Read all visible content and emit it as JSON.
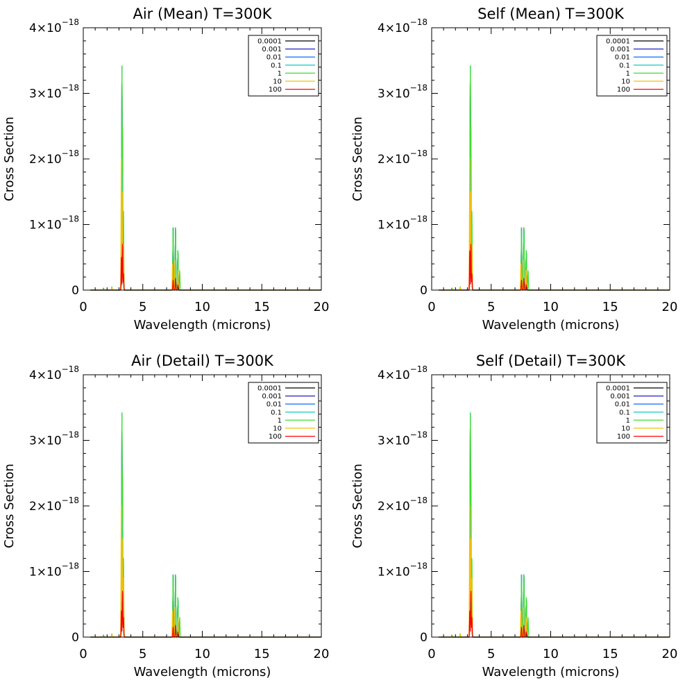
{
  "chart_data": [
    {
      "type": "line",
      "title": "Air (Mean) T=300K",
      "xlabel": "Wavelength (microns)",
      "ylabel": "Cross Section",
      "xlim": [
        0,
        20
      ],
      "ylim": [
        0,
        4e-18
      ],
      "xticks": [
        "0",
        "5",
        "10",
        "15",
        "20"
      ],
      "yticks": [
        {
          "mant": "0",
          "exp": ""
        },
        {
          "mant": "1×10",
          "exp": "−18"
        },
        {
          "mant": "2×10",
          "exp": "−18"
        },
        {
          "mant": "3×10",
          "exp": "−18"
        },
        {
          "mant": "4×10",
          "exp": "−18"
        }
      ],
      "legend": [
        "0.0001",
        "0.001",
        "0.01",
        "0.1",
        "1",
        "10",
        "100"
      ],
      "legend_position": "top-right",
      "series": [
        {
          "name": "0.0001",
          "color": "#000000",
          "peaks": [
            [
              1.7,
              0.03
            ],
            [
              2.4,
              0.03
            ],
            [
              3.25,
              3.4
            ],
            [
              3.35,
              0.9
            ],
            [
              7.55,
              0.95
            ],
            [
              7.75,
              0.95
            ],
            [
              7.95,
              0.6
            ]
          ]
        },
        {
          "name": "0.001",
          "color": "#2020c0",
          "peaks": [
            [
              3.25,
              3.4
            ],
            [
              3.35,
              0.9
            ],
            [
              7.55,
              0.95
            ],
            [
              7.75,
              0.95
            ],
            [
              7.95,
              0.6
            ]
          ]
        },
        {
          "name": "0.01",
          "color": "#1e78ff",
          "peaks": [
            [
              3.25,
              3.4
            ],
            [
              3.35,
              0.9
            ],
            [
              7.55,
              0.95
            ],
            [
              7.75,
              0.95
            ],
            [
              7.95,
              0.6
            ]
          ]
        },
        {
          "name": "0.1",
          "color": "#20d0c0",
          "peaks": [
            [
              3.25,
              3.42
            ],
            [
              3.35,
              0.9
            ],
            [
              7.55,
              0.95
            ],
            [
              7.75,
              0.95
            ],
            [
              7.95,
              0.6
            ]
          ]
        },
        {
          "name": "1",
          "color": "#40dd30",
          "peaks": [
            [
              1.7,
              0.03
            ],
            [
              2.4,
              0.05
            ],
            [
              3.25,
              3.42
            ],
            [
              3.3,
              2.5
            ],
            [
              3.38,
              1.2
            ],
            [
              7.55,
              0.95
            ],
            [
              7.75,
              0.95
            ],
            [
              7.95,
              0.6
            ],
            [
              8.1,
              0.3
            ]
          ]
        },
        {
          "name": "10",
          "color": "#f0c000",
          "peaks": [
            [
              2.4,
              0.04
            ],
            [
              3.2,
              2.0
            ],
            [
              3.28,
              1.5
            ],
            [
              3.38,
              0.7
            ],
            [
              7.5,
              0.4
            ],
            [
              7.7,
              0.45
            ],
            [
              7.95,
              0.3
            ]
          ]
        },
        {
          "name": "100",
          "color": "#ff0000",
          "peaks": [
            [
              3.2,
              0.5
            ],
            [
              3.3,
              0.7
            ],
            [
              3.38,
              0.25
            ],
            [
              7.55,
              0.15
            ],
            [
              7.75,
              0.18
            ],
            [
              7.95,
              0.08
            ]
          ]
        }
      ]
    },
    {
      "type": "line",
      "title": "Self (Mean) T=300K",
      "xlabel": "Wavelength (microns)",
      "ylabel": "Cross Section",
      "xlim": [
        0,
        20
      ],
      "ylim": [
        0,
        4e-18
      ],
      "xticks": [
        "0",
        "5",
        "10",
        "15",
        "20"
      ],
      "yticks": [
        {
          "mant": "0",
          "exp": ""
        },
        {
          "mant": "1×10",
          "exp": "−18"
        },
        {
          "mant": "2×10",
          "exp": "−18"
        },
        {
          "mant": "3×10",
          "exp": "−18"
        },
        {
          "mant": "4×10",
          "exp": "−18"
        }
      ],
      "legend": [
        "0.0001",
        "0.001",
        "0.01",
        "0.1",
        "1",
        "10",
        "100"
      ],
      "legend_position": "top-right",
      "series": [
        {
          "name": "0.0001",
          "color": "#000000",
          "peaks": [
            [
              1.7,
              0.03
            ],
            [
              2.4,
              0.03
            ],
            [
              3.25,
              3.4
            ],
            [
              3.35,
              0.9
            ],
            [
              7.55,
              0.95
            ],
            [
              7.75,
              0.95
            ],
            [
              7.95,
              0.6
            ]
          ]
        },
        {
          "name": "0.001",
          "color": "#2020c0",
          "peaks": [
            [
              3.25,
              3.4
            ],
            [
              3.35,
              0.9
            ],
            [
              7.55,
              0.95
            ],
            [
              7.75,
              0.95
            ],
            [
              7.95,
              0.6
            ]
          ]
        },
        {
          "name": "0.01",
          "color": "#1e78ff",
          "peaks": [
            [
              3.25,
              3.4
            ],
            [
              3.35,
              0.9
            ],
            [
              7.55,
              0.95
            ],
            [
              7.75,
              0.95
            ],
            [
              7.95,
              0.6
            ]
          ]
        },
        {
          "name": "0.1",
          "color": "#20d0c0",
          "peaks": [
            [
              3.25,
              3.42
            ],
            [
              3.35,
              0.9
            ],
            [
              7.55,
              0.95
            ],
            [
              7.75,
              0.95
            ],
            [
              7.95,
              0.6
            ]
          ]
        },
        {
          "name": "1",
          "color": "#40dd30",
          "peaks": [
            [
              1.7,
              0.03
            ],
            [
              2.4,
              0.05
            ],
            [
              3.25,
              3.42
            ],
            [
              3.3,
              2.5
            ],
            [
              3.38,
              1.2
            ],
            [
              7.55,
              0.95
            ],
            [
              7.75,
              0.95
            ],
            [
              7.95,
              0.6
            ],
            [
              8.1,
              0.3
            ]
          ]
        },
        {
          "name": "10",
          "color": "#f0c000",
          "peaks": [
            [
              2.4,
              0.04
            ],
            [
              3.2,
              2.0
            ],
            [
              3.28,
              1.5
            ],
            [
              3.38,
              0.7
            ],
            [
              7.5,
              0.4
            ],
            [
              7.7,
              0.45
            ],
            [
              7.95,
              0.3
            ]
          ]
        },
        {
          "name": "100",
          "color": "#ff0000",
          "peaks": [
            [
              3.2,
              0.6
            ],
            [
              3.3,
              0.7
            ],
            [
              3.38,
              0.25
            ],
            [
              7.55,
              0.15
            ],
            [
              7.75,
              0.18
            ],
            [
              7.95,
              0.08
            ]
          ]
        }
      ]
    },
    {
      "type": "line",
      "title": "Air (Detail) T=300K",
      "xlabel": "Wavelength (microns)",
      "ylabel": "Cross Section",
      "xlim": [
        0,
        20
      ],
      "ylim": [
        0,
        4e-18
      ],
      "xticks": [
        "0",
        "5",
        "10",
        "15",
        "20"
      ],
      "yticks": [
        {
          "mant": "0",
          "exp": ""
        },
        {
          "mant": "1×10",
          "exp": "−18"
        },
        {
          "mant": "2×10",
          "exp": "−18"
        },
        {
          "mant": "3×10",
          "exp": "−18"
        },
        {
          "mant": "4×10",
          "exp": "−18"
        }
      ],
      "legend": [
        "0.0001",
        "0.001",
        "0.01",
        "0.1",
        "1",
        "10",
        "100"
      ],
      "legend_position": "top-right",
      "series": [
        {
          "name": "0.0001",
          "color": "#000000",
          "peaks": [
            [
              1.7,
              0.03
            ],
            [
              2.4,
              0.03
            ],
            [
              3.25,
              3.4
            ],
            [
              3.35,
              0.9
            ],
            [
              7.55,
              0.95
            ],
            [
              7.75,
              0.95
            ],
            [
              7.95,
              0.6
            ]
          ]
        },
        {
          "name": "0.001",
          "color": "#2020c0",
          "peaks": [
            [
              3.25,
              3.4
            ],
            [
              3.35,
              0.9
            ],
            [
              7.55,
              0.95
            ],
            [
              7.75,
              0.95
            ],
            [
              7.95,
              0.6
            ]
          ]
        },
        {
          "name": "0.01",
          "color": "#1e78ff",
          "peaks": [
            [
              3.25,
              3.4
            ],
            [
              3.35,
              0.9
            ],
            [
              7.55,
              0.95
            ],
            [
              7.75,
              0.95
            ],
            [
              7.95,
              0.6
            ]
          ]
        },
        {
          "name": "0.1",
          "color": "#20d0c0",
          "peaks": [
            [
              3.25,
              3.42
            ],
            [
              3.35,
              0.9
            ],
            [
              7.55,
              0.95
            ],
            [
              7.75,
              0.95
            ],
            [
              7.95,
              0.6
            ]
          ]
        },
        {
          "name": "1",
          "color": "#40dd30",
          "peaks": [
            [
              1.7,
              0.03
            ],
            [
              2.4,
              0.05
            ],
            [
              3.25,
              3.42
            ],
            [
              3.3,
              2.5
            ],
            [
              3.38,
              1.2
            ],
            [
              7.55,
              0.95
            ],
            [
              7.75,
              0.95
            ],
            [
              7.95,
              0.6
            ],
            [
              8.1,
              0.3
            ]
          ]
        },
        {
          "name": "10",
          "color": "#f0c000",
          "peaks": [
            [
              2.4,
              0.04
            ],
            [
              3.2,
              2.0
            ],
            [
              3.28,
              1.5
            ],
            [
              3.38,
              0.9
            ],
            [
              7.5,
              0.4
            ],
            [
              7.7,
              0.45
            ],
            [
              7.95,
              0.3
            ]
          ]
        },
        {
          "name": "100",
          "color": "#ff0000",
          "peaks": [
            [
              3.2,
              0.4
            ],
            [
              3.3,
              0.7
            ],
            [
              3.38,
              0.3
            ],
            [
              7.55,
              0.15
            ],
            [
              7.75,
              0.18
            ],
            [
              7.95,
              0.08
            ]
          ]
        }
      ]
    },
    {
      "type": "line",
      "title": "Self (Detail) T=300K",
      "xlabel": "Wavelength (microns)",
      "ylabel": "Cross Section",
      "xlim": [
        0,
        20
      ],
      "ylim": [
        0,
        4e-18
      ],
      "xticks": [
        "0",
        "5",
        "10",
        "15",
        "20"
      ],
      "yticks": [
        {
          "mant": "0",
          "exp": ""
        },
        {
          "mant": "1×10",
          "exp": "−18"
        },
        {
          "mant": "2×10",
          "exp": "−18"
        },
        {
          "mant": "3×10",
          "exp": "−18"
        },
        {
          "mant": "4×10",
          "exp": "−18"
        }
      ],
      "legend": [
        "0.0001",
        "0.001",
        "0.01",
        "0.1",
        "1",
        "10",
        "100"
      ],
      "legend_position": "top-right",
      "series": [
        {
          "name": "0.0001",
          "color": "#000000",
          "peaks": [
            [
              1.7,
              0.03
            ],
            [
              2.4,
              0.03
            ],
            [
              3.25,
              3.4
            ],
            [
              3.35,
              0.9
            ],
            [
              7.55,
              0.95
            ],
            [
              7.75,
              0.95
            ],
            [
              7.95,
              0.6
            ]
          ]
        },
        {
          "name": "0.001",
          "color": "#2020c0",
          "peaks": [
            [
              3.25,
              3.4
            ],
            [
              3.35,
              0.9
            ],
            [
              7.55,
              0.95
            ],
            [
              7.75,
              0.95
            ],
            [
              7.95,
              0.6
            ]
          ]
        },
        {
          "name": "0.01",
          "color": "#1e78ff",
          "peaks": [
            [
              3.25,
              3.4
            ],
            [
              3.35,
              0.9
            ],
            [
              7.55,
              0.95
            ],
            [
              7.75,
              0.95
            ],
            [
              7.95,
              0.6
            ]
          ]
        },
        {
          "name": "0.1",
          "color": "#20d0c0",
          "peaks": [
            [
              3.25,
              3.42
            ],
            [
              3.35,
              0.9
            ],
            [
              7.55,
              0.95
            ],
            [
              7.75,
              0.95
            ],
            [
              7.95,
              0.6
            ]
          ]
        },
        {
          "name": "1",
          "color": "#40dd30",
          "peaks": [
            [
              1.7,
              0.03
            ],
            [
              2.4,
              0.05
            ],
            [
              3.25,
              3.42
            ],
            [
              3.3,
              2.5
            ],
            [
              3.38,
              1.2
            ],
            [
              7.55,
              0.95
            ],
            [
              7.75,
              0.95
            ],
            [
              7.95,
              0.6
            ],
            [
              8.1,
              0.3
            ]
          ]
        },
        {
          "name": "10",
          "color": "#f0c000",
          "peaks": [
            [
              2.4,
              0.04
            ],
            [
              3.2,
              2.0
            ],
            [
              3.28,
              1.5
            ],
            [
              3.38,
              0.9
            ],
            [
              7.5,
              0.4
            ],
            [
              7.7,
              0.45
            ],
            [
              7.95,
              0.3
            ]
          ]
        },
        {
          "name": "100",
          "color": "#ff0000",
          "peaks": [
            [
              3.2,
              0.4
            ],
            [
              3.3,
              0.7
            ],
            [
              3.38,
              0.3
            ],
            [
              7.55,
              0.15
            ],
            [
              7.75,
              0.18
            ],
            [
              7.95,
              0.08
            ]
          ]
        }
      ]
    }
  ]
}
